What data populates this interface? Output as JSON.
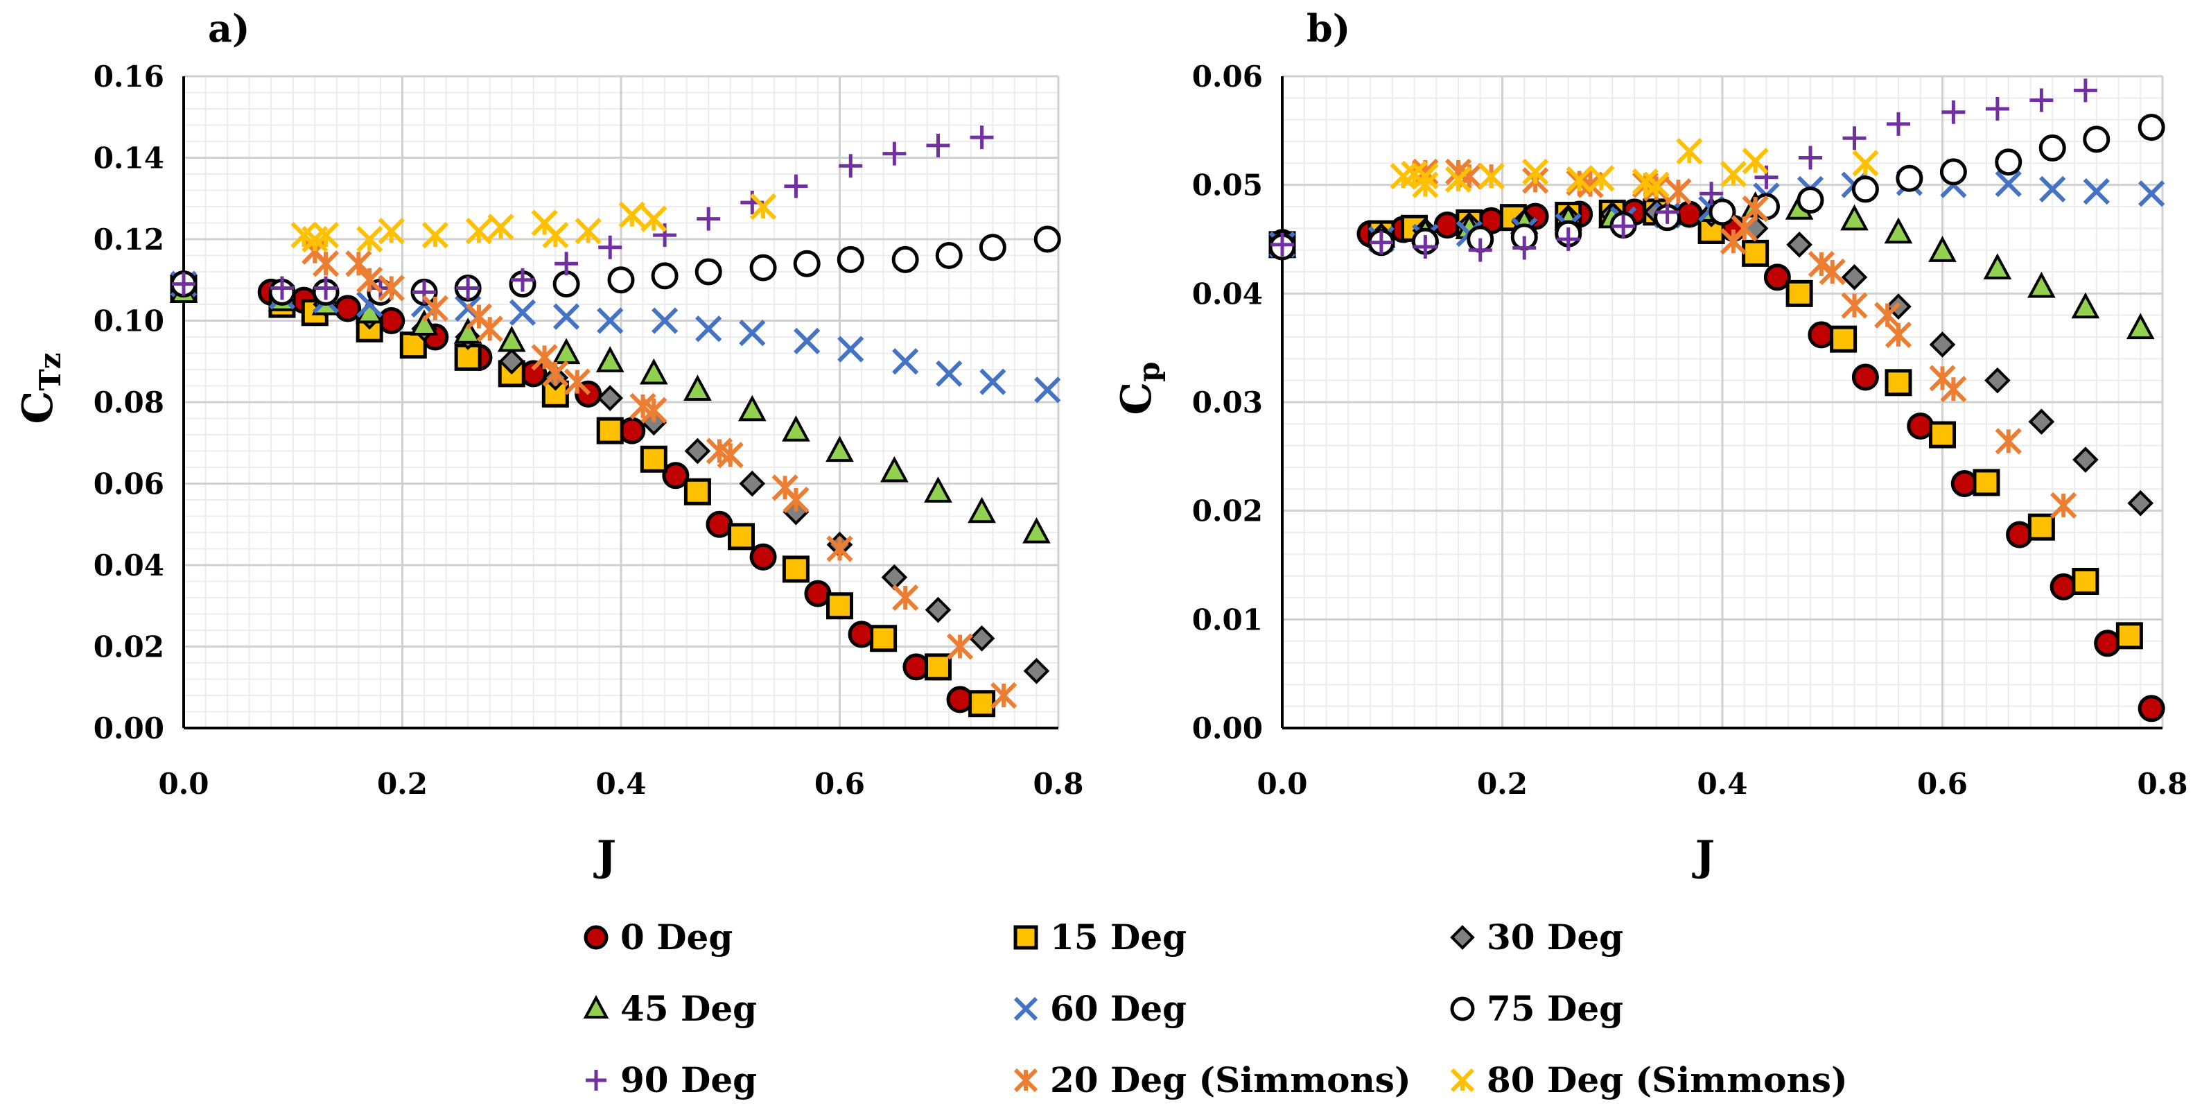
{
  "colors": {
    "red": "#c00000",
    "orange": "#ffc000",
    "gray": "#808080",
    "green": "#92d050",
    "blue": "#4472c4",
    "purple": "#7030a0",
    "dark_orange": "#ed7d31",
    "yellow": "#ffc000",
    "grid": "#d9d9d9"
  },
  "chart_data": [
    {
      "id": "a",
      "type": "scatter",
      "panel_label": "a)",
      "xlabel": "J",
      "ylabel_main": "C",
      "ylabel_sub": "Tz",
      "xlim": [
        0,
        0.8
      ],
      "ylim": [
        0,
        0.16
      ],
      "xticks": [
        "0.0",
        "0.2",
        "0.4",
        "0.6",
        "0.8"
      ],
      "yticks": [
        "0.00",
        "0.02",
        "0.04",
        "0.06",
        "0.08",
        "0.10",
        "0.12",
        "0.14",
        "0.16"
      ],
      "series": [
        {
          "name": "0 Deg",
          "marker": "circle",
          "color": "#c00000",
          "x": [
            0.0,
            0.08,
            0.11,
            0.15,
            0.19,
            0.23,
            0.27,
            0.32,
            0.37,
            0.41,
            0.45,
            0.49,
            0.53,
            0.58,
            0.62,
            0.67,
            0.71
          ],
          "y": [
            0.109,
            0.107,
            0.105,
            0.103,
            0.1,
            0.096,
            0.091,
            0.087,
            0.082,
            0.073,
            0.062,
            0.05,
            0.042,
            0.033,
            0.023,
            0.015,
            0.007
          ]
        },
        {
          "name": "15 Deg",
          "marker": "square",
          "color": "#ffc000",
          "x": [
            0.0,
            0.09,
            0.12,
            0.17,
            0.21,
            0.26,
            0.3,
            0.34,
            0.39,
            0.43,
            0.47,
            0.51,
            0.56,
            0.6,
            0.64,
            0.69,
            0.73
          ],
          "y": [
            0.108,
            0.104,
            0.102,
            0.098,
            0.094,
            0.091,
            0.087,
            0.082,
            0.073,
            0.066,
            0.058,
            0.047,
            0.039,
            0.03,
            0.022,
            0.015,
            0.006
          ]
        },
        {
          "name": "30 Deg",
          "marker": "diamond",
          "color": "#808080",
          "x": [
            0.0,
            0.09,
            0.13,
            0.17,
            0.22,
            0.26,
            0.3,
            0.34,
            0.39,
            0.43,
            0.47,
            0.52,
            0.56,
            0.6,
            0.65,
            0.69,
            0.73,
            0.78
          ],
          "y": [
            0.108,
            0.106,
            0.104,
            0.101,
            0.098,
            0.096,
            0.09,
            0.086,
            0.081,
            0.075,
            0.068,
            0.06,
            0.053,
            0.045,
            0.037,
            0.029,
            0.022,
            0.014
          ]
        },
        {
          "name": "45 Deg",
          "marker": "triangle",
          "color": "#92d050",
          "x": [
            0.0,
            0.09,
            0.13,
            0.17,
            0.22,
            0.26,
            0.3,
            0.35,
            0.39,
            0.43,
            0.47,
            0.52,
            0.56,
            0.6,
            0.65,
            0.69,
            0.73,
            0.78
          ],
          "y": [
            0.107,
            0.105,
            0.104,
            0.102,
            0.099,
            0.097,
            0.095,
            0.092,
            0.09,
            0.087,
            0.083,
            0.078,
            0.073,
            0.068,
            0.063,
            0.058,
            0.053,
            0.048
          ]
        },
        {
          "name": "60 Deg",
          "marker": "x",
          "color": "#4472c4",
          "x": [
            0.0,
            0.09,
            0.13,
            0.17,
            0.22,
            0.26,
            0.31,
            0.35,
            0.39,
            0.44,
            0.48,
            0.52,
            0.57,
            0.61,
            0.66,
            0.7,
            0.74,
            0.79
          ],
          "y": [
            0.109,
            0.106,
            0.105,
            0.104,
            0.104,
            0.103,
            0.102,
            0.101,
            0.1,
            0.1,
            0.098,
            0.097,
            0.095,
            0.093,
            0.09,
            0.087,
            0.085,
            0.083
          ]
        },
        {
          "name": "75 Deg",
          "marker": "open-circle",
          "color": "#000000",
          "x": [
            0.0,
            0.09,
            0.13,
            0.18,
            0.22,
            0.26,
            0.31,
            0.35,
            0.4,
            0.44,
            0.48,
            0.53,
            0.57,
            0.61,
            0.66,
            0.7,
            0.74,
            0.79
          ],
          "y": [
            0.109,
            0.107,
            0.107,
            0.107,
            0.107,
            0.108,
            0.109,
            0.109,
            0.11,
            0.111,
            0.112,
            0.113,
            0.114,
            0.115,
            0.115,
            0.116,
            0.118,
            0.12
          ]
        },
        {
          "name": "90 Deg",
          "marker": "plus",
          "color": "#7030a0",
          "x": [
            0.0,
            0.09,
            0.13,
            0.18,
            0.22,
            0.26,
            0.31,
            0.35,
            0.39,
            0.44,
            0.48,
            0.52,
            0.56,
            0.61,
            0.65,
            0.69,
            0.73
          ],
          "y": [
            0.109,
            0.108,
            0.108,
            0.108,
            0.107,
            0.108,
            0.11,
            0.114,
            0.118,
            0.121,
            0.125,
            0.129,
            0.133,
            0.138,
            0.141,
            0.143,
            0.145
          ]
        },
        {
          "name": "20 Deg (Simmons)",
          "marker": "asterisk",
          "color": "#ed7d31",
          "x": [
            0.12,
            0.13,
            0.16,
            0.17,
            0.19,
            0.23,
            0.27,
            0.28,
            0.33,
            0.34,
            0.36,
            0.42,
            0.43,
            0.49,
            0.5,
            0.55,
            0.56,
            0.6,
            0.66,
            0.71,
            0.75
          ],
          "y": [
            0.117,
            0.114,
            0.114,
            0.11,
            0.108,
            0.103,
            0.101,
            0.098,
            0.091,
            0.087,
            0.085,
            0.079,
            0.078,
            0.068,
            0.067,
            0.059,
            0.056,
            0.044,
            0.032,
            0.02,
            0.008
          ]
        },
        {
          "name": "80 Deg (Simmons)",
          "marker": "star",
          "color": "#ffc000",
          "x": [
            0.11,
            0.12,
            0.13,
            0.17,
            0.19,
            0.23,
            0.27,
            0.29,
            0.33,
            0.34,
            0.37,
            0.41,
            0.43,
            0.53
          ],
          "y": [
            0.121,
            0.12,
            0.121,
            0.12,
            0.122,
            0.121,
            0.122,
            0.123,
            0.124,
            0.121,
            0.122,
            0.126,
            0.125,
            0.128
          ]
        }
      ]
    },
    {
      "id": "b",
      "type": "scatter",
      "panel_label": "b)",
      "xlabel": "J",
      "ylabel_main": "C",
      "ylabel_sub": "p",
      "xlim": [
        0,
        0.8
      ],
      "ylim": [
        0,
        0.06
      ],
      "xticks": [
        "0.0",
        "0.2",
        "0.4",
        "0.6",
        "0.8"
      ],
      "yticks": [
        "0.00",
        "0.01",
        "0.02",
        "0.03",
        "0.04",
        "0.05",
        "0.06"
      ],
      "series": [
        {
          "name": "0 Deg",
          "marker": "circle",
          "color": "#c00000",
          "x": [
            0.0,
            0.08,
            0.11,
            0.15,
            0.19,
            0.23,
            0.27,
            0.32,
            0.37,
            0.41,
            0.45,
            0.49,
            0.53,
            0.58,
            0.62,
            0.67,
            0.71,
            0.75,
            0.79
          ],
          "y": [
            0.0447,
            0.0455,
            0.0459,
            0.0463,
            0.0467,
            0.0471,
            0.0473,
            0.0475,
            0.0473,
            0.046,
            0.0415,
            0.0362,
            0.0323,
            0.0278,
            0.0225,
            0.0178,
            0.013,
            0.0078,
            0.0018
          ]
        },
        {
          "name": "15 Deg",
          "marker": "square",
          "color": "#ffc000",
          "x": [
            0.0,
            0.09,
            0.12,
            0.17,
            0.21,
            0.26,
            0.3,
            0.34,
            0.39,
            0.43,
            0.47,
            0.51,
            0.56,
            0.6,
            0.64,
            0.69,
            0.73,
            0.77
          ],
          "y": [
            0.0445,
            0.0455,
            0.046,
            0.0465,
            0.047,
            0.0472,
            0.0474,
            0.0475,
            0.0458,
            0.0437,
            0.04,
            0.0358,
            0.0318,
            0.027,
            0.0226,
            0.0185,
            0.0135,
            0.0085
          ]
        },
        {
          "name": "30 Deg",
          "marker": "diamond",
          "color": "#808080",
          "x": [
            0.0,
            0.09,
            0.13,
            0.17,
            0.22,
            0.26,
            0.3,
            0.34,
            0.39,
            0.43,
            0.47,
            0.52,
            0.56,
            0.6,
            0.65,
            0.69,
            0.73,
            0.78
          ],
          "y": [
            0.0447,
            0.0453,
            0.0458,
            0.0463,
            0.0466,
            0.047,
            0.0473,
            0.0475,
            0.0473,
            0.046,
            0.0445,
            0.0415,
            0.0388,
            0.0353,
            0.032,
            0.0282,
            0.0247,
            0.0207
          ]
        },
        {
          "name": "45 Deg",
          "marker": "triangle",
          "color": "#92d050",
          "x": [
            0.0,
            0.09,
            0.13,
            0.17,
            0.22,
            0.26,
            0.3,
            0.35,
            0.39,
            0.43,
            0.47,
            0.52,
            0.56,
            0.6,
            0.65,
            0.69,
            0.73,
            0.78
          ],
          "y": [
            0.0443,
            0.0452,
            0.0456,
            0.046,
            0.0465,
            0.0468,
            0.047,
            0.0473,
            0.0476,
            0.048,
            0.0478,
            0.0468,
            0.0456,
            0.0439,
            0.0423,
            0.0406,
            0.0387,
            0.0368
          ]
        },
        {
          "name": "60 Deg",
          "marker": "x",
          "color": "#4472c4",
          "x": [
            0.0,
            0.09,
            0.13,
            0.17,
            0.22,
            0.26,
            0.31,
            0.35,
            0.39,
            0.44,
            0.48,
            0.52,
            0.57,
            0.61,
            0.66,
            0.7,
            0.74,
            0.79
          ],
          "y": [
            0.0445,
            0.045,
            0.0452,
            0.0455,
            0.0458,
            0.0462,
            0.0468,
            0.0472,
            0.0478,
            0.049,
            0.0496,
            0.05,
            0.0502,
            0.05,
            0.0501,
            0.0496,
            0.0494,
            0.0492
          ]
        },
        {
          "name": "75 Deg",
          "marker": "open-circle",
          "color": "#000000",
          "x": [
            0.0,
            0.09,
            0.13,
            0.18,
            0.22,
            0.26,
            0.31,
            0.35,
            0.4,
            0.44,
            0.48,
            0.53,
            0.57,
            0.61,
            0.66,
            0.7,
            0.74,
            0.79
          ],
          "y": [
            0.0443,
            0.0447,
            0.0448,
            0.045,
            0.0452,
            0.0455,
            0.0463,
            0.047,
            0.0475,
            0.048,
            0.0486,
            0.0496,
            0.0506,
            0.0512,
            0.0521,
            0.0534,
            0.0542,
            0.0553
          ]
        },
        {
          "name": "90 Deg",
          "marker": "plus",
          "color": "#7030a0",
          "x": [
            0.0,
            0.09,
            0.13,
            0.18,
            0.22,
            0.26,
            0.31,
            0.35,
            0.39,
            0.44,
            0.48,
            0.52,
            0.56,
            0.61,
            0.65,
            0.69,
            0.73
          ],
          "y": [
            0.0445,
            0.0447,
            0.0443,
            0.044,
            0.0442,
            0.045,
            0.0462,
            0.0475,
            0.0492,
            0.0507,
            0.0525,
            0.0543,
            0.0556,
            0.0567,
            0.057,
            0.0578,
            0.0587
          ]
        },
        {
          "name": "20 Deg (Simmons)",
          "marker": "asterisk",
          "color": "#ed7d31",
          "x": [
            0.12,
            0.13,
            0.16,
            0.17,
            0.19,
            0.23,
            0.27,
            0.28,
            0.33,
            0.34,
            0.36,
            0.41,
            0.42,
            0.43,
            0.49,
            0.5,
            0.52,
            0.55,
            0.56,
            0.6,
            0.61,
            0.66,
            0.71
          ],
          "y": [
            0.051,
            0.0512,
            0.0512,
            0.0508,
            0.0508,
            0.0504,
            0.0502,
            0.05,
            0.05,
            0.0497,
            0.0494,
            0.0448,
            0.046,
            0.0478,
            0.0427,
            0.042,
            0.0389,
            0.038,
            0.0362,
            0.0322,
            0.0312,
            0.0264,
            0.0205
          ]
        },
        {
          "name": "80 Deg (Simmons)",
          "marker": "star",
          "color": "#ffc000",
          "x": [
            0.11,
            0.12,
            0.13,
            0.13,
            0.16,
            0.19,
            0.23,
            0.27,
            0.29,
            0.33,
            0.34,
            0.37,
            0.41,
            0.43,
            0.53
          ],
          "y": [
            0.0508,
            0.051,
            0.0508,
            0.05,
            0.0505,
            0.0508,
            0.0512,
            0.0505,
            0.0506,
            0.0503,
            0.05,
            0.0531,
            0.051,
            0.0522,
            0.052
          ]
        }
      ]
    }
  ],
  "legend": {
    "items": [
      {
        "label": "0 Deg",
        "marker": "circle",
        "color": "#c00000"
      },
      {
        "label": "15 Deg",
        "marker": "square",
        "color": "#ffc000"
      },
      {
        "label": "30 Deg",
        "marker": "diamond",
        "color": "#808080"
      },
      {
        "label": "45 Deg",
        "marker": "triangle",
        "color": "#92d050"
      },
      {
        "label": "60 Deg",
        "marker": "x",
        "color": "#4472c4"
      },
      {
        "label": "75 Deg",
        "marker": "open-circle",
        "color": "#000000"
      },
      {
        "label": "90 Deg",
        "marker": "plus",
        "color": "#7030a0"
      },
      {
        "label": "20 Deg (Simmons)",
        "marker": "asterisk",
        "color": "#ed7d31"
      },
      {
        "label": "80 Deg (Simmons)",
        "marker": "star",
        "color": "#ffc000"
      }
    ]
  }
}
